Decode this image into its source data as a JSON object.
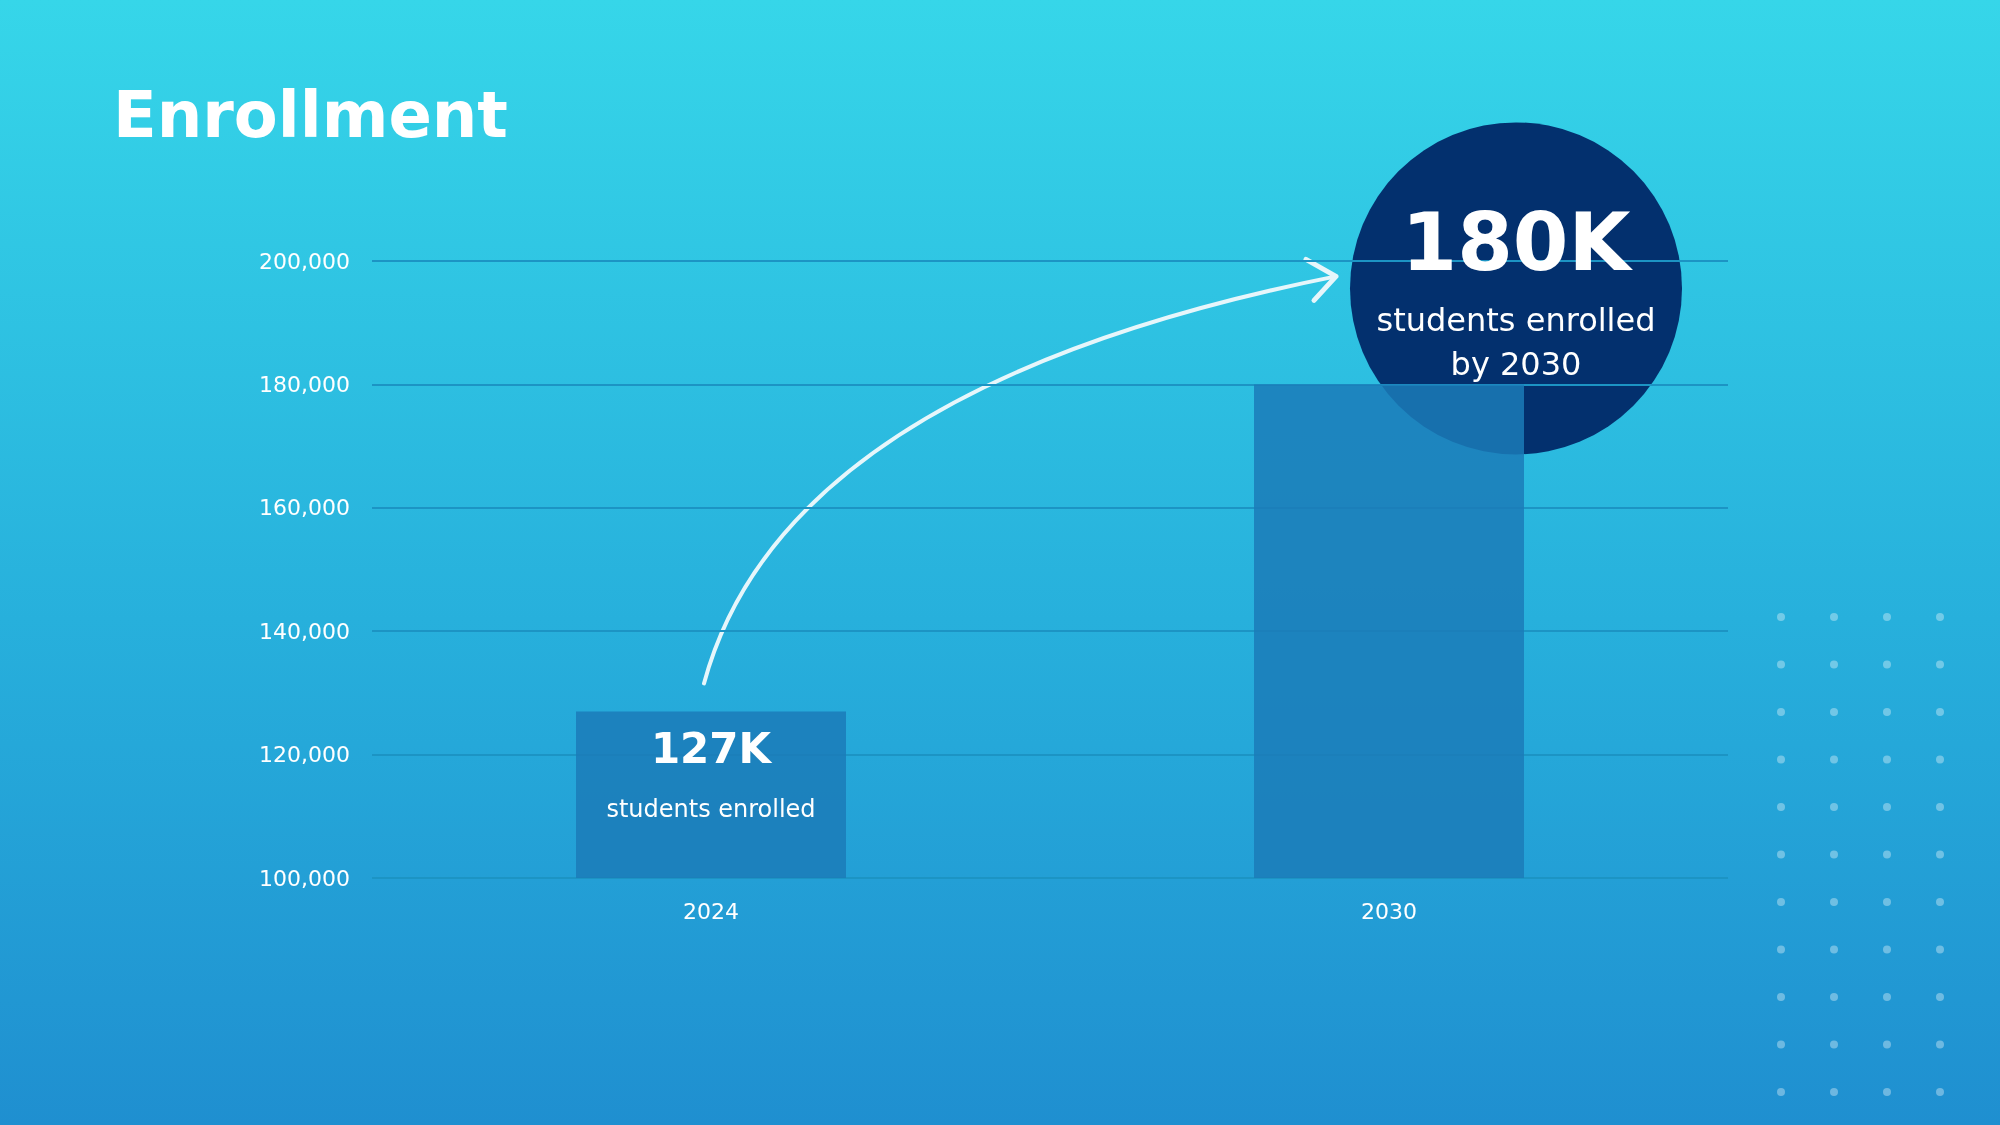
{
  "chart_data": {
    "type": "bar",
    "title": "Enrollment",
    "categories": [
      "2024",
      "2030"
    ],
    "values": [
      127000,
      180000
    ],
    "value_labels": [
      "127K",
      "180K"
    ],
    "color": "#1b7bb8",
    "ylim": [
      100000,
      200000
    ],
    "yticks": [
      {
        "value": 100000,
        "label": "100,000"
      },
      {
        "value": 120000,
        "label": "120,000"
      },
      {
        "value": 140000,
        "label": "140,000"
      },
      {
        "value": 160000,
        "label": "160,000"
      },
      {
        "value": 180000,
        "label": "180,000"
      },
      {
        "value": 200000,
        "label": "200,000"
      }
    ],
    "grid": "y",
    "annotations": [
      "students enrolled",
      "students enrolled\nby 2030"
    ]
  }
}
